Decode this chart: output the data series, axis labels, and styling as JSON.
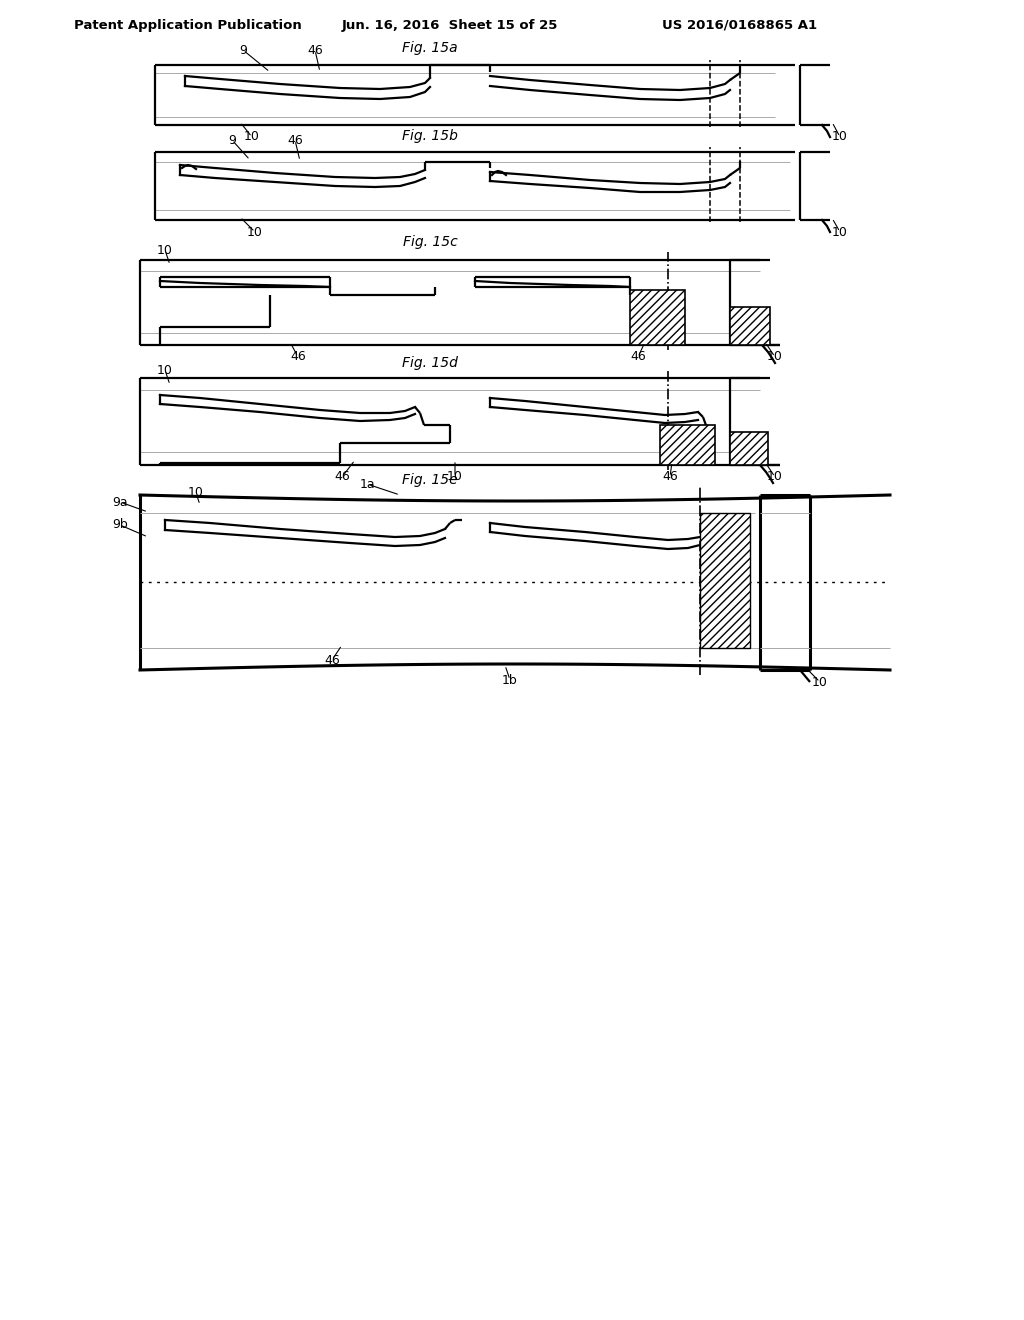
{
  "title_header": "Patent Application Publication",
  "date_header": "Jun. 16, 2016  Sheet 15 of 25",
  "patent_header": "US 2016/0168865 A1",
  "fig_labels": [
    "Fig. 15a",
    "Fig. 15b",
    "Fig. 15c",
    "Fig. 15d",
    "Fig. 15e"
  ],
  "background_color": "#ffffff",
  "line_color": "#000000",
  "lw_thin": 0.7,
  "lw_med": 1.6,
  "lw_thick": 2.2,
  "gray": "#aaaaaa"
}
